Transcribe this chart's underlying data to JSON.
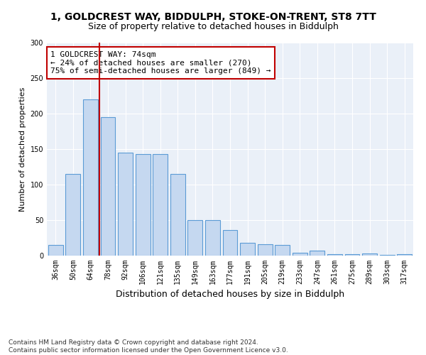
{
  "title1": "1, GOLDCREST WAY, BIDDULPH, STOKE-ON-TRENT, ST8 7TT",
  "title2": "Size of property relative to detached houses in Biddulph",
  "xlabel": "Distribution of detached houses by size in Biddulph",
  "ylabel": "Number of detached properties",
  "categories": [
    "36sqm",
    "50sqm",
    "64sqm",
    "78sqm",
    "92sqm",
    "106sqm",
    "121sqm",
    "135sqm",
    "149sqm",
    "163sqm",
    "177sqm",
    "191sqm",
    "205sqm",
    "219sqm",
    "233sqm",
    "247sqm",
    "261sqm",
    "275sqm",
    "289sqm",
    "303sqm",
    "317sqm"
  ],
  "values": [
    15,
    115,
    220,
    195,
    145,
    143,
    143,
    115,
    50,
    50,
    36,
    18,
    16,
    15,
    4,
    7,
    2,
    2,
    3,
    1,
    2
  ],
  "bar_color": "#c5d8f0",
  "bar_edge_color": "#5b9bd5",
  "vline_color": "#c00000",
  "vline_x": 2.5,
  "annotation_text": "1 GOLDCREST WAY: 74sqm\n← 24% of detached houses are smaller (270)\n75% of semi-detached houses are larger (849) →",
  "annotation_box_color": "white",
  "annotation_box_edge": "#c00000",
  "ylim": [
    0,
    300
  ],
  "yticks": [
    0,
    50,
    100,
    150,
    200,
    250,
    300
  ],
  "background_color": "#eaf0f8",
  "footer": "Contains HM Land Registry data © Crown copyright and database right 2024.\nContains public sector information licensed under the Open Government Licence v3.0.",
  "title1_fontsize": 10,
  "title2_fontsize": 9,
  "xlabel_fontsize": 9,
  "ylabel_fontsize": 8,
  "tick_fontsize": 7,
  "annotation_fontsize": 8,
  "footer_fontsize": 6.5
}
